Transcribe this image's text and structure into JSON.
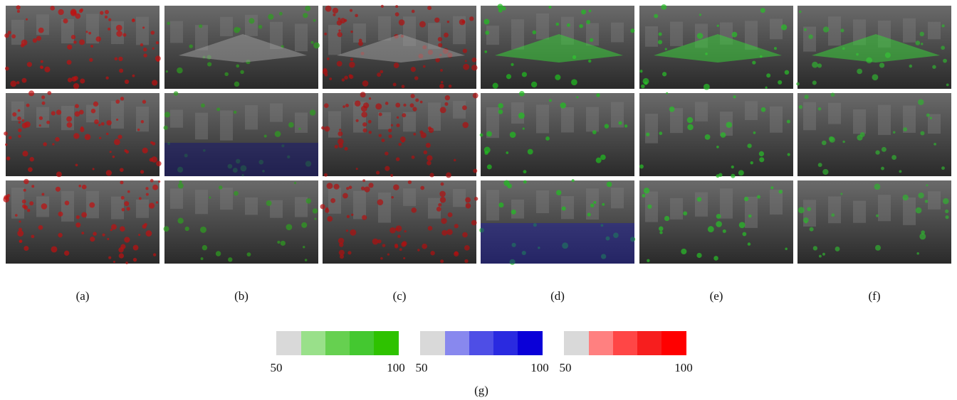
{
  "figure": {
    "subcaptions": [
      "(a)",
      "(b)",
      "(c)",
      "(d)",
      "(e)",
      "(f)"
    ],
    "colorbars": [
      {
        "min_label": "50",
        "max_label": "100"
      },
      {
        "min_label": "50",
        "max_label": "100"
      },
      {
        "min_label": "50",
        "max_label": "100"
      }
    ],
    "colorbar_caption": "(g)"
  }
}
